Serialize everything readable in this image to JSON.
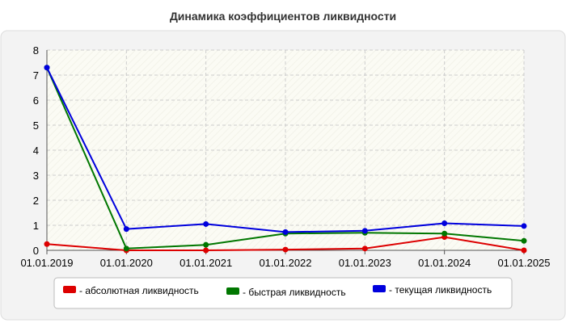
{
  "chart_data": {
    "type": "line",
    "title": "Динамика коэффициентов ликвидности",
    "xlabel": "",
    "ylabel": "",
    "categories": [
      "01.01.2019",
      "01.01.2020",
      "01.01.2021",
      "01.01.2022",
      "01.01.2023",
      "01.01.2024",
      "01.01.2025"
    ],
    "ylim": [
      0,
      8
    ],
    "yticks": [
      "0",
      "1",
      "2",
      "3",
      "4",
      "5",
      "6",
      "7",
      "8"
    ],
    "grid": true,
    "legend_position": "bottom",
    "series": [
      {
        "name": "- абсолютная ликвидность",
        "color": "#dd0000",
        "values": [
          0.25,
          0.0,
          0.0,
          0.03,
          0.07,
          0.53,
          0.0
        ]
      },
      {
        "name": "- быстрая ликвидность",
        "color": "#007700",
        "values": [
          7.3,
          0.07,
          0.22,
          0.67,
          0.7,
          0.67,
          0.38
        ]
      },
      {
        "name": "- текущая ликвидность",
        "color": "#0000dd",
        "values": [
          7.3,
          0.85,
          1.05,
          0.73,
          0.78,
          1.08,
          0.97
        ]
      }
    ]
  }
}
